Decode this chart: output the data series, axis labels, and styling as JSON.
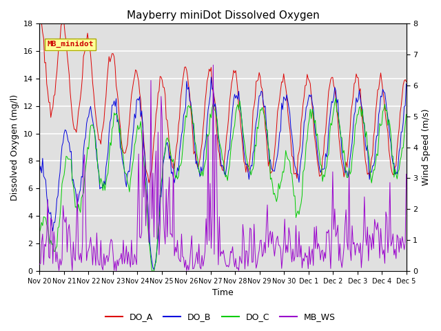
{
  "title": "Mayberry miniDot Dissolved Oxygen",
  "xlabel": "Time",
  "ylabel_left": "Dissolved Oxygen (mg/l)",
  "ylabel_right": "Wind Speed (m/s)",
  "ylim_left": [
    0,
    18
  ],
  "ylim_right": [
    0.0,
    8.0
  ],
  "yticks_left": [
    0,
    2,
    4,
    6,
    8,
    10,
    12,
    14,
    16,
    18
  ],
  "yticks_right": [
    0.0,
    1.0,
    2.0,
    3.0,
    4.0,
    5.0,
    6.0,
    7.0,
    8.0
  ],
  "xtick_labels": [
    "Nov 20",
    "Nov 21",
    "Nov 22",
    "Nov 23",
    "Nov 24",
    "Nov 25",
    "Nov 26",
    "Nov 27",
    "Nov 28",
    "Nov 29",
    "Nov 30",
    "Dec 1",
    "Dec 2",
    "Dec 3",
    "Dec 4",
    "Dec 5"
  ],
  "colors": {
    "DO_A": "#dd0000",
    "DO_B": "#0000dd",
    "DO_C": "#00cc00",
    "MB_WS": "#9900cc"
  },
  "legend_label": "MB_minidot",
  "background_color": "#ffffff",
  "plot_bg_color": "#e0e0e0",
  "grid_color": "#ffffff",
  "legend_box_color": "#ffff99",
  "legend_box_edge": "#aaaa00",
  "linewidth": 0.7,
  "title_fontsize": 11,
  "axis_fontsize": 9,
  "tick_fontsize": 8,
  "xtick_fontsize": 7
}
